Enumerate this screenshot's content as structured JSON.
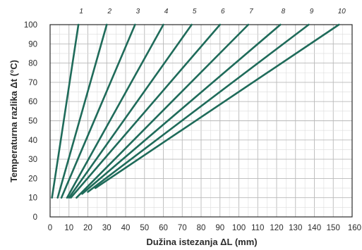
{
  "chart_data": {
    "type": "line",
    "title": "",
    "xlabel": "Dužina istezanja ΔL (mm)",
    "ylabel": "Temperaturna razlika Δt (°C)",
    "xlim": [
      0,
      160
    ],
    "ylim": [
      0,
      100
    ],
    "x_ticks": [
      "0",
      "10",
      "20",
      "30",
      "40",
      "50",
      "60",
      "70",
      "80",
      "90",
      "100",
      "110",
      "120",
      "130",
      "140",
      "150",
      "160"
    ],
    "y_ticks": [
      "0",
      "10",
      "20",
      "30",
      "40",
      "50",
      "60",
      "70",
      "80",
      "90",
      "100"
    ],
    "grid": true,
    "line_color": "#1f6b5a",
    "series": [
      {
        "name": "1",
        "x": [
          1,
          15
        ],
        "y": [
          10,
          100
        ]
      },
      {
        "name": "2",
        "x": [
          4,
          30
        ],
        "y": [
          10,
          100
        ]
      },
      {
        "name": "3",
        "x": [
          6,
          45
        ],
        "y": [
          10,
          100
        ]
      },
      {
        "name": "4",
        "x": [
          9,
          60
        ],
        "y": [
          10,
          100
        ]
      },
      {
        "name": "5",
        "x": [
          10,
          75
        ],
        "y": [
          10,
          100
        ]
      },
      {
        "name": "6",
        "x": [
          11,
          90
        ],
        "y": [
          10,
          100
        ]
      },
      {
        "name": "7",
        "x": [
          14,
          105
        ],
        "y": [
          10,
          100
        ]
      },
      {
        "name": "8",
        "x": [
          17,
          122
        ],
        "y": [
          12,
          100
        ]
      },
      {
        "name": "9",
        "x": [
          20,
          137
        ],
        "y": [
          13,
          100
        ]
      },
      {
        "name": "10",
        "x": [
          24,
          153
        ],
        "y": [
          15,
          100
        ]
      }
    ]
  }
}
